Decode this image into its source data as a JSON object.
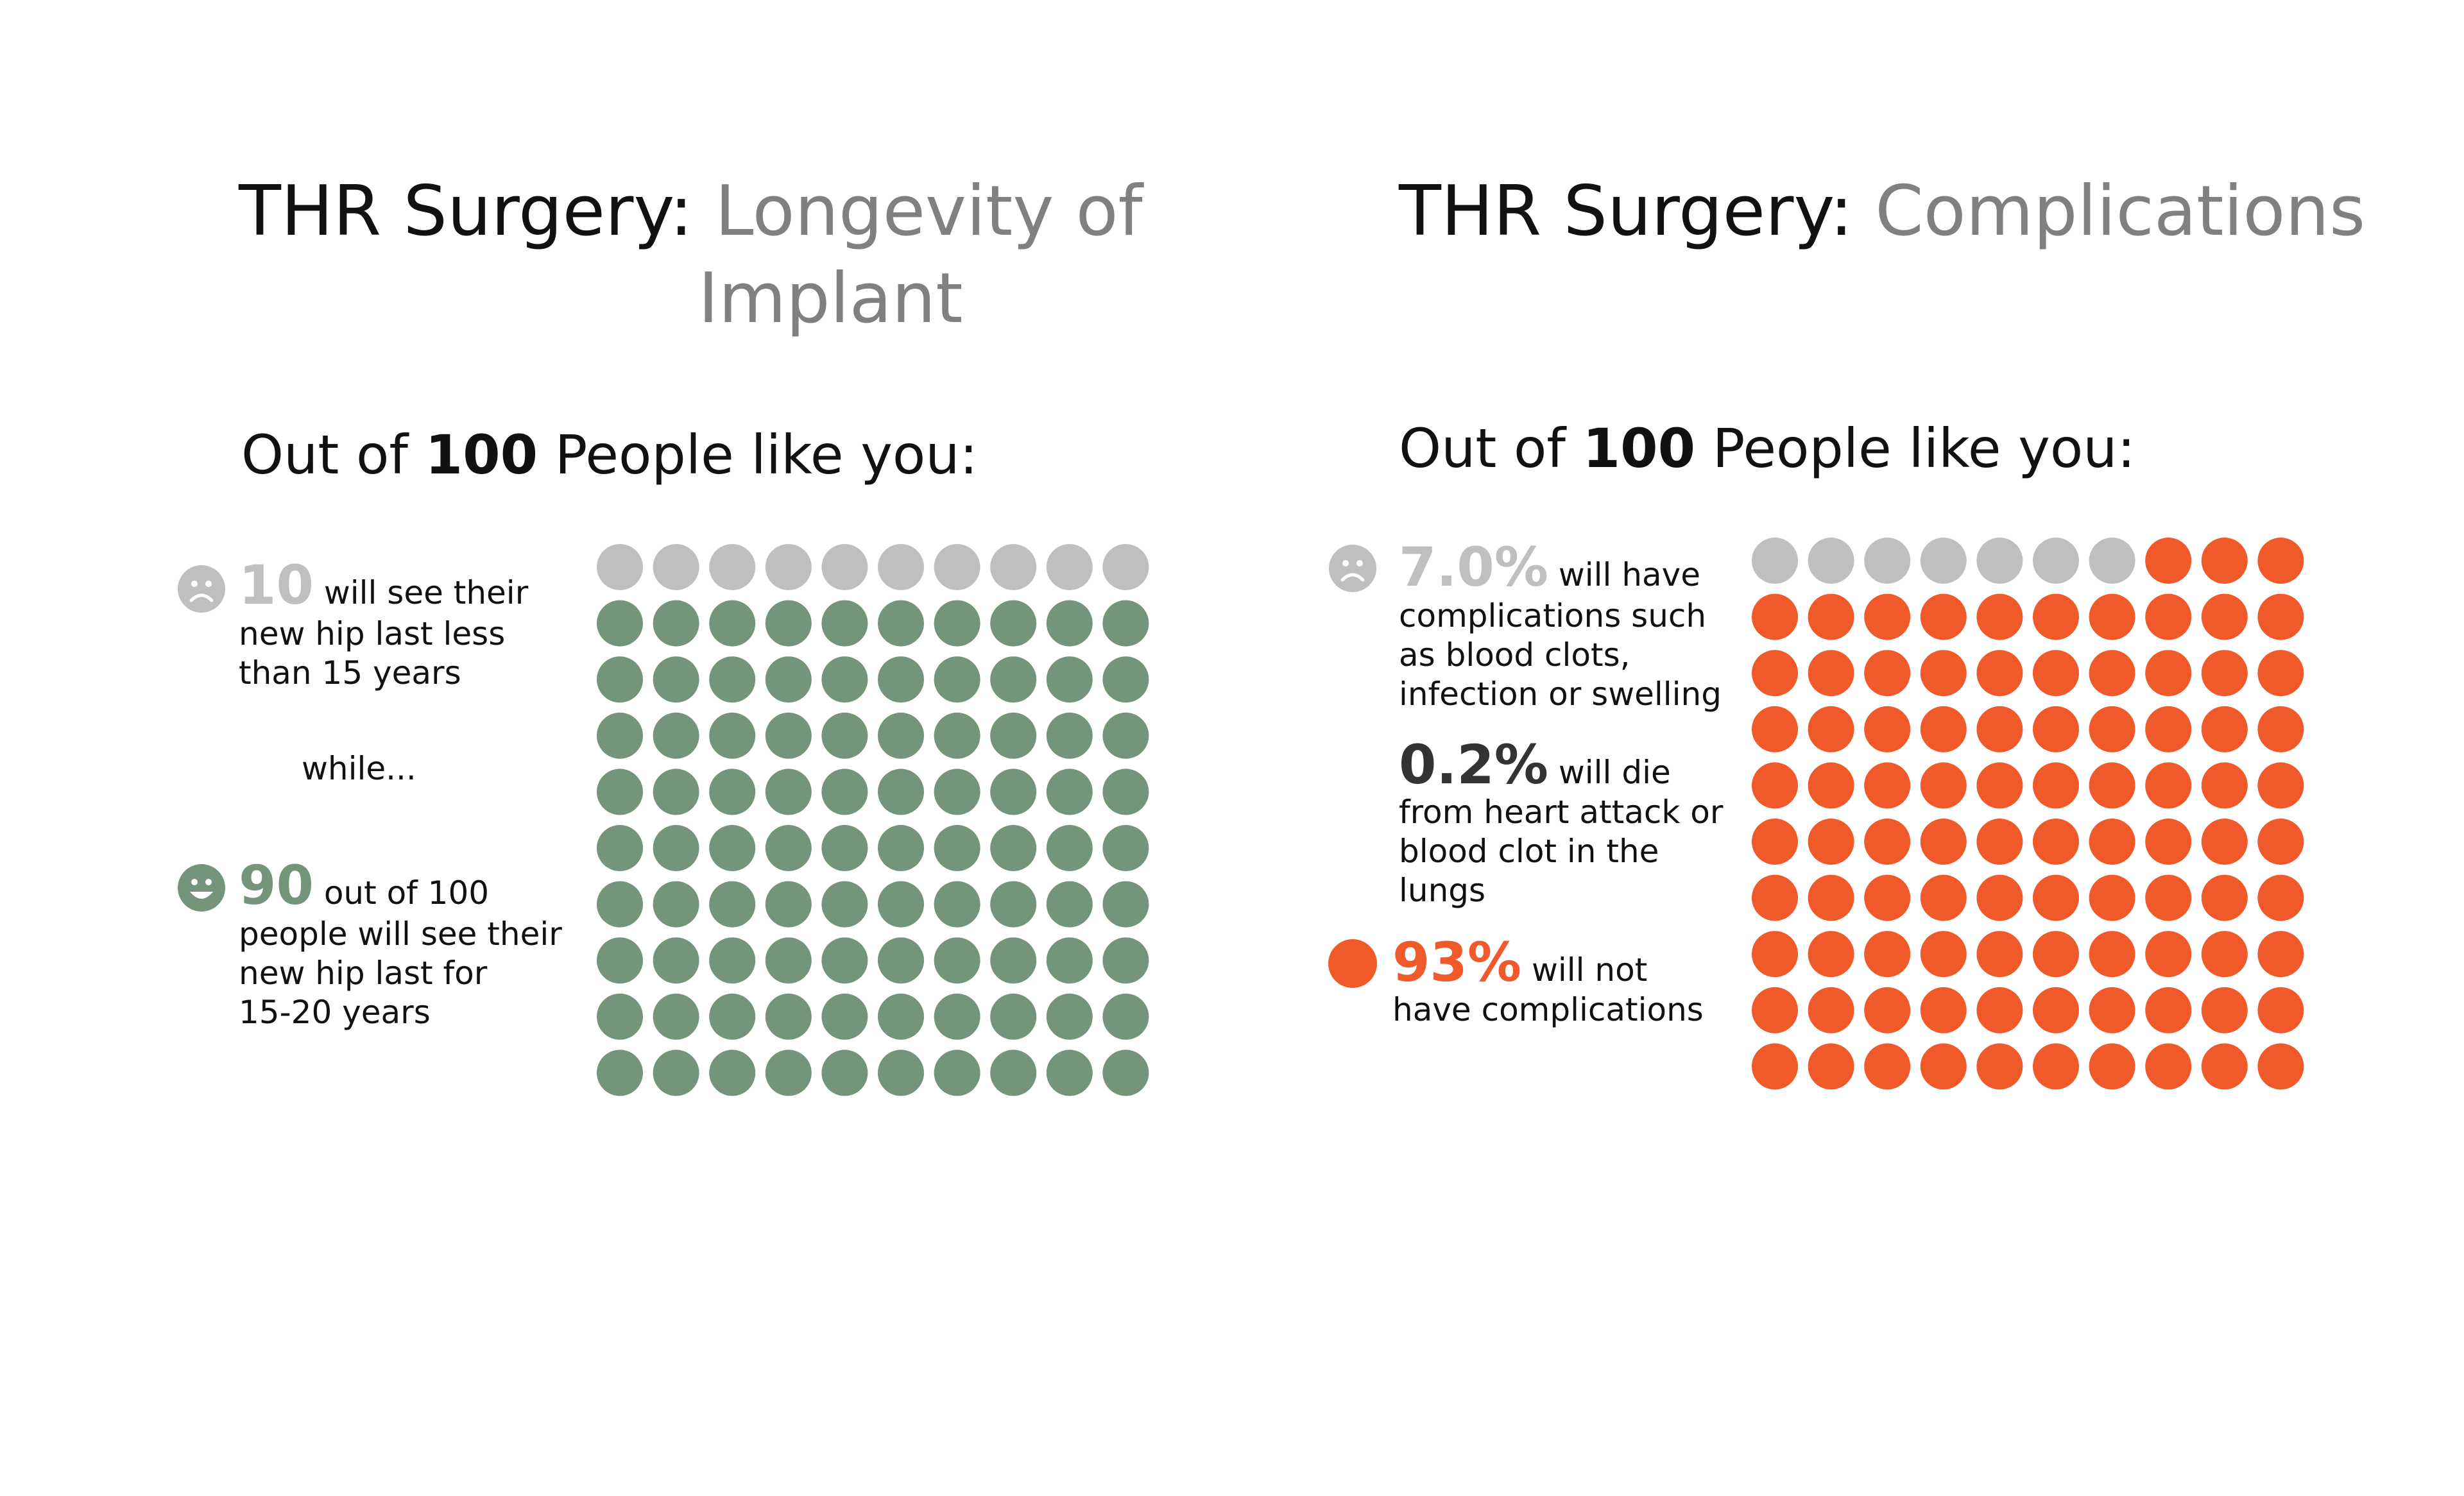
{
  "colors": {
    "grey": "#bfbfbf",
    "green": "#74957a",
    "orange": "#f05a2a",
    "dark": "#333333"
  },
  "left": {
    "title_prefix": "THR Surgery:",
    "title_line1": "Longevity of",
    "title_line2": "Implant",
    "heading_pre": "Out of",
    "heading_num": "100",
    "heading_post": "People like you:",
    "item1": {
      "icon": "sad-face-icon",
      "number": "10",
      "line1": "will see their",
      "line2": "new hip last less",
      "line3": "than 15 years"
    },
    "connector": "while...",
    "item2": {
      "icon": "happy-face-icon",
      "number": "90",
      "line1": "out of 100",
      "line2": "people will see their",
      "line3": "new hip last for",
      "line4": "15-20 years"
    }
  },
  "right": {
    "title_prefix": "THR Surgery:",
    "title_line1": "Complications",
    "heading_pre": "Out of",
    "heading_num": "100",
    "heading_post": "People like you:",
    "item1": {
      "icon": "sad-face-icon",
      "number": "7.0%",
      "line1": "will have",
      "line2": "complications such",
      "line3": "as blood clots,",
      "line4": "infection or swelling"
    },
    "item2": {
      "number": "0.2%",
      "line1": "will die",
      "line2": "from heart attack or",
      "line3": "blood clot in the",
      "line4": "lungs"
    },
    "item3": {
      "icon": "orange-dot-icon",
      "number": "93%",
      "line1": "will not",
      "line2": "have complications"
    }
  },
  "chart_data": [
    {
      "type": "waffle",
      "rows": 10,
      "cols": 10,
      "total": 100,
      "series": [
        {
          "name": "will see their new hip last less than 15 years",
          "value": 10,
          "color": "#bfbfbf"
        },
        {
          "name": "will see their new hip last for 15-20 years",
          "value": 90,
          "color": "#74957a"
        }
      ]
    },
    {
      "type": "waffle",
      "rows": 10,
      "cols": 10,
      "total": 100,
      "series": [
        {
          "name": "will have complications",
          "value": 7,
          "color": "#bfbfbf"
        },
        {
          "name": "will not have complications",
          "value": 93,
          "color": "#f05a2a"
        }
      ]
    }
  ]
}
